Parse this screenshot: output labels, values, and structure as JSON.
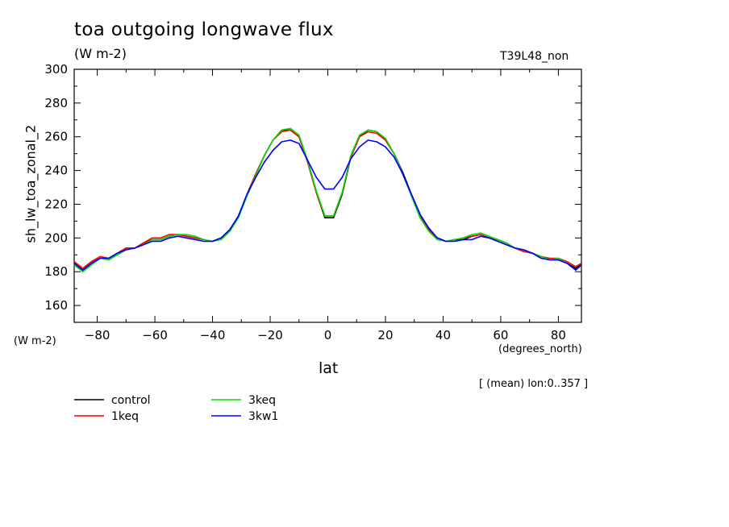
{
  "chart_data": {
    "type": "line",
    "title": "toa outgoing longwave flux",
    "units": "(W m-2)",
    "run": "T39L48_non",
    "ylabel": "sh_lw_toa_zonal_2",
    "ylabel_units": "(W m-2)",
    "xlabel": "lat",
    "x_units": "(degrees_north)",
    "note": "[ (mean) lon:0..357 ]",
    "xlim": [
      -88,
      88
    ],
    "ylim": [
      150,
      300
    ],
    "xticks": [
      -80,
      -60,
      -40,
      -20,
      0,
      20,
      40,
      60,
      80
    ],
    "yticks": [
      160,
      180,
      200,
      220,
      240,
      260,
      280,
      300
    ],
    "x": [
      -88,
      -85,
      -82,
      -79,
      -76,
      -73,
      -70,
      -67,
      -64,
      -61,
      -58,
      -55,
      -52,
      -49,
      -46,
      -43,
      -40,
      -37,
      -34,
      -31,
      -28,
      -25,
      -22,
      -19,
      -16,
      -13,
      -10,
      -7,
      -4,
      -1,
      2,
      5,
      8,
      11,
      14,
      17,
      20,
      23,
      26,
      29,
      32,
      35,
      38,
      41,
      44,
      47,
      50,
      53,
      56,
      59,
      62,
      65,
      68,
      71,
      74,
      77,
      80,
      83,
      86,
      88
    ],
    "series": [
      {
        "name": "control",
        "color": "#000000",
        "values": [
          185,
          181,
          185,
          188,
          188,
          191,
          194,
          194,
          197,
          199,
          199,
          201,
          202,
          201,
          200,
          199,
          198,
          200,
          205,
          213,
          226,
          238,
          249,
          258,
          264,
          264,
          260,
          245,
          227,
          212,
          212,
          226,
          248,
          260,
          264,
          263,
          258,
          250,
          239,
          226,
          214,
          205,
          200,
          198,
          199,
          199,
          201,
          202,
          200,
          198,
          196,
          194,
          192,
          191,
          189,
          187,
          187,
          185,
          182,
          185
        ]
      },
      {
        "name": "1keq",
        "color": "#ff0000",
        "values": [
          186,
          182,
          186,
          189,
          188,
          191,
          194,
          194,
          197,
          200,
          200,
          202,
          202,
          201,
          200,
          199,
          198,
          200,
          205,
          213,
          226,
          238,
          249,
          258,
          263,
          264,
          260,
          245,
          227,
          213,
          213,
          227,
          248,
          260,
          263,
          262,
          258,
          250,
          238,
          225,
          213,
          205,
          200,
          198,
          199,
          200,
          201,
          202,
          200,
          199,
          197,
          194,
          192,
          191,
          189,
          188,
          188,
          186,
          183,
          185
        ]
      },
      {
        "name": "3keq",
        "color": "#00dd00",
        "values": [
          184,
          180,
          184,
          188,
          187,
          190,
          193,
          194,
          196,
          199,
          199,
          201,
          202,
          202,
          201,
          199,
          198,
          199,
          204,
          212,
          225,
          237,
          249,
          258,
          264,
          265,
          261,
          246,
          228,
          213,
          213,
          227,
          249,
          261,
          264,
          263,
          259,
          250,
          238,
          225,
          212,
          204,
          199,
          198,
          199,
          200,
          202,
          203,
          201,
          199,
          197,
          194,
          193,
          191,
          189,
          187,
          188,
          185,
          181,
          184
        ]
      },
      {
        "name": "3kw1",
        "color": "#0000ff",
        "values": [
          185,
          181,
          185,
          188,
          188,
          191,
          193,
          194,
          196,
          198,
          198,
          200,
          201,
          200,
          199,
          198,
          198,
          200,
          205,
          213,
          226,
          236,
          245,
          252,
          257,
          258,
          256,
          246,
          236,
          229,
          229,
          236,
          247,
          254,
          258,
          257,
          254,
          248,
          238,
          226,
          214,
          206,
          200,
          198,
          198,
          199,
          199,
          201,
          200,
          198,
          196,
          194,
          193,
          191,
          188,
          187,
          187,
          185,
          181,
          184
        ]
      }
    ],
    "legend_position": "bottom-left"
  }
}
